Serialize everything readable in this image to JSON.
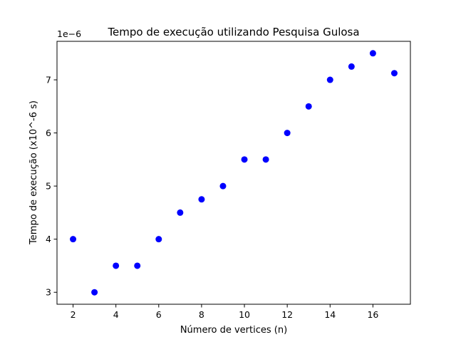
{
  "chart_data": {
    "type": "scatter",
    "title": "Tempo de execução utilizando Pesquisa Gulosa",
    "xlabel": "Número de vertices (n)",
    "ylabel": "Tempo de execução (x10^-6 s)",
    "y_offset_label": "1e−6",
    "xlim": [
      1.25,
      17.75
    ],
    "ylim": [
      2.775e-06,
      7.725e-06
    ],
    "x_ticks": [
      2,
      4,
      6,
      8,
      10,
      12,
      14,
      16
    ],
    "x_tick_labels": [
      "2",
      "4",
      "6",
      "8",
      "10",
      "12",
      "14",
      "16"
    ],
    "y_ticks": [
      3e-06,
      4e-06,
      5e-06,
      6e-06,
      7e-06
    ],
    "y_tick_labels": [
      "3",
      "4",
      "5",
      "6",
      "7"
    ],
    "grid": false,
    "marker_color": "#0000ff",
    "series": [
      {
        "x": [
          2,
          3,
          4,
          5,
          6,
          7,
          8,
          9,
          10,
          11,
          12,
          13,
          14,
          15,
          16,
          17
        ],
        "y": [
          4e-06,
          3e-06,
          3.5e-06,
          3.5e-06,
          4e-06,
          4.5e-06,
          4.75e-06,
          5e-06,
          5.5e-06,
          5.5e-06,
          6e-06,
          6.5e-06,
          7e-06,
          7.25e-06,
          7.5e-06,
          7.125e-06
        ]
      }
    ]
  }
}
